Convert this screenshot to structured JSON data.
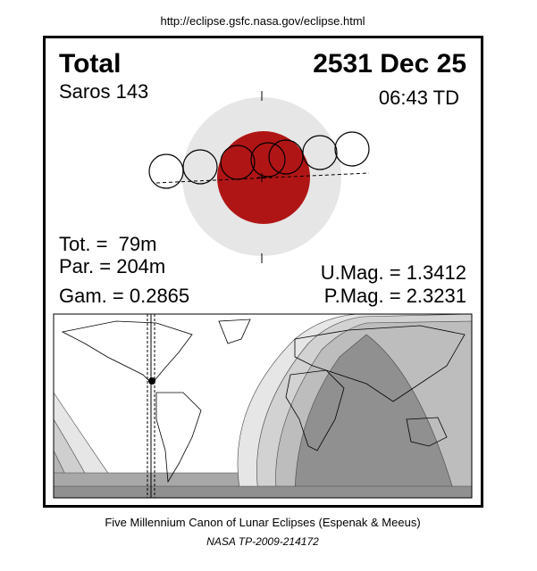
{
  "header": {
    "url": "http://eclipse.gsfc.nasa.gov/eclipse.html"
  },
  "eclipse": {
    "type": "Total",
    "date": "2531 Dec 25",
    "saros": "Saros 143",
    "time": "06:43 TD",
    "totality": "Tot. =  79m",
    "partial": "Par. = 204m",
    "gamma": "Gam. = 0.2865",
    "umbral_magnitude": "U.Mag. = 1.3412",
    "penumbral_magnitude": "P.Mag. = 2.3231"
  },
  "footer": {
    "canon": "Five Millennium Canon of Lunar Eclipses (Espenak & Meeus)",
    "reference": "NASA TP-2009-214172"
  }
}
